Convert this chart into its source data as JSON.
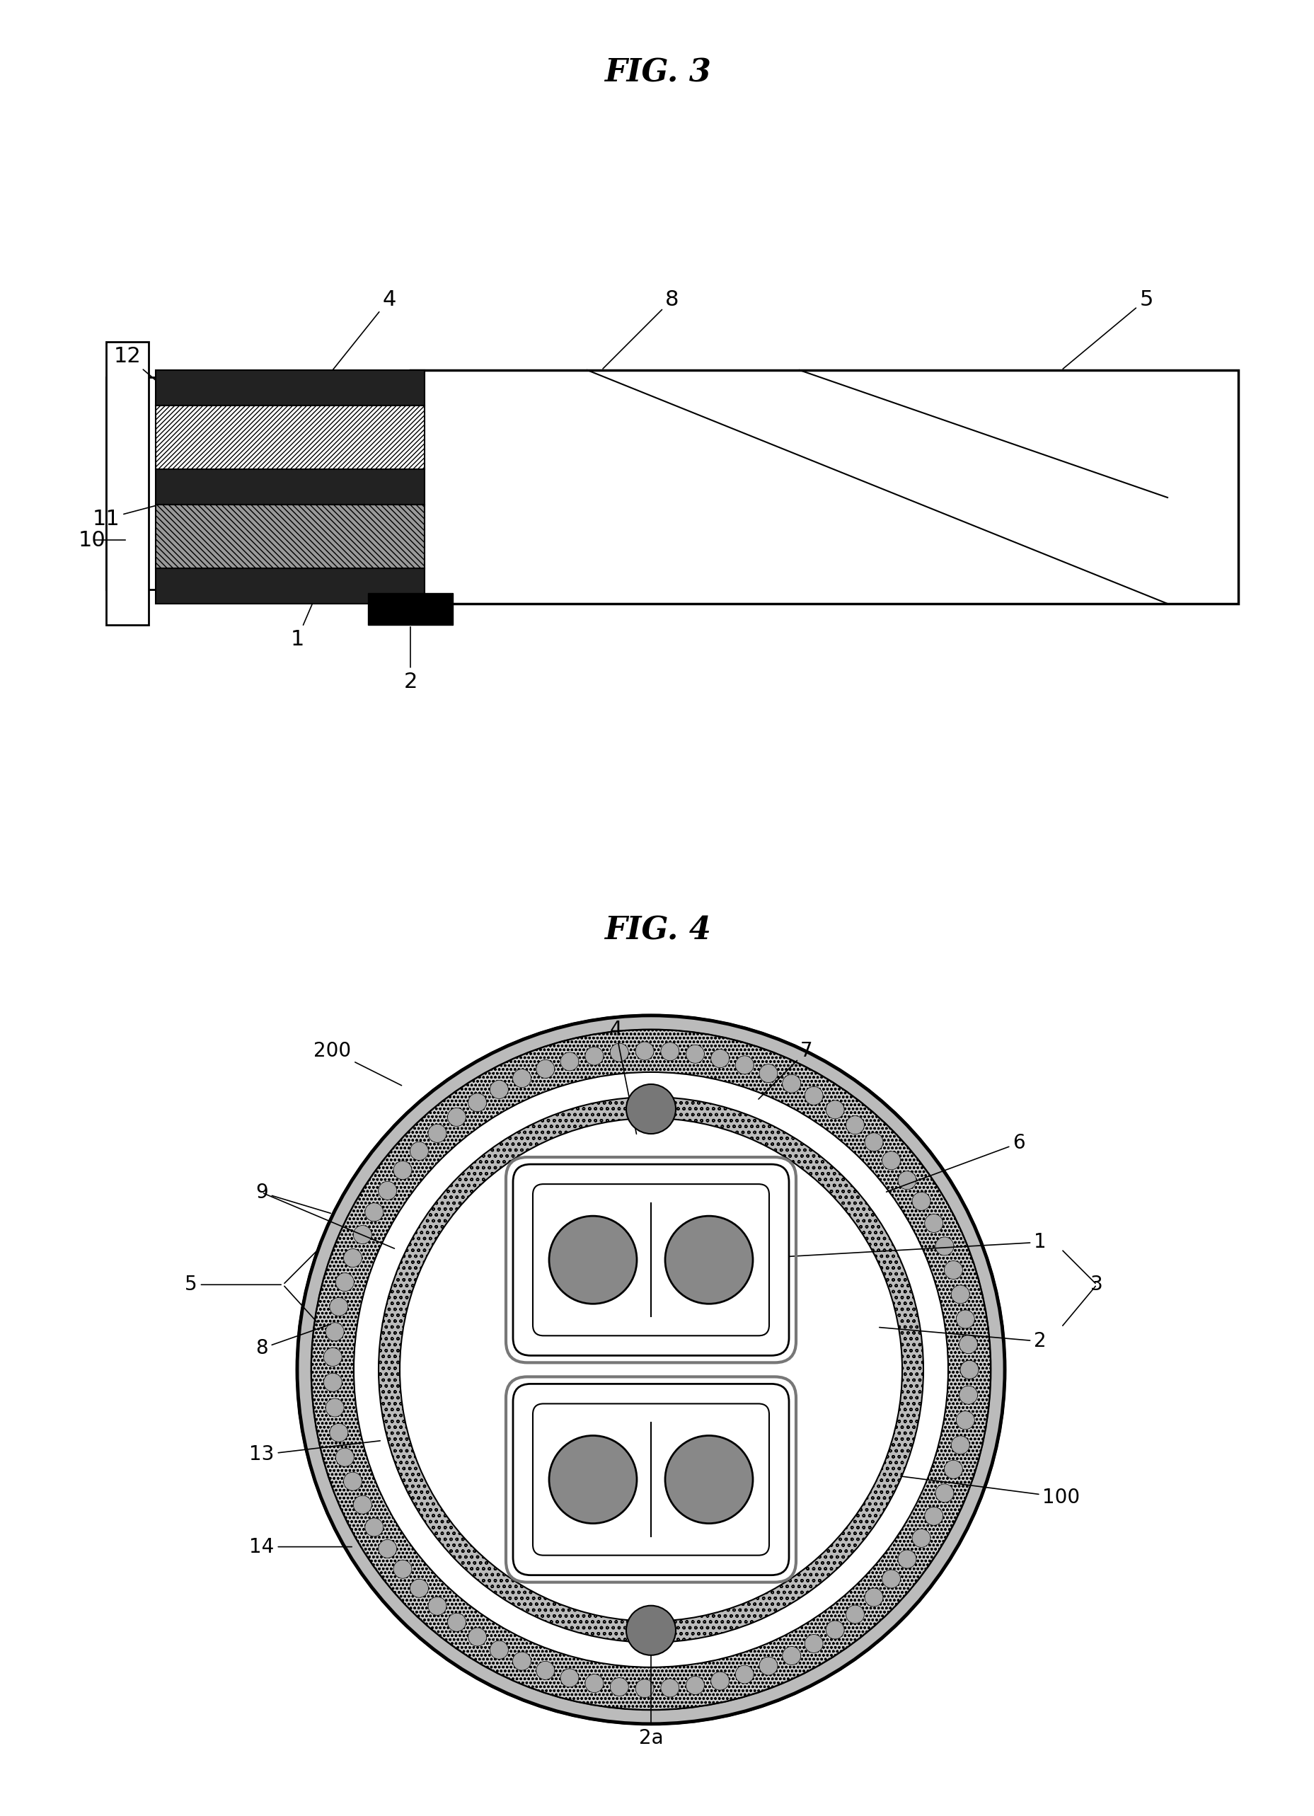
{
  "fig3_title": "FIG. 3",
  "fig4_title": "FIG. 4",
  "bg_color": "#ffffff",
  "line_color": "#000000",
  "dark_gray": "#333333",
  "mid_gray": "#666666",
  "light_gray": "#aaaaaa",
  "hatch_gray": "#888888"
}
